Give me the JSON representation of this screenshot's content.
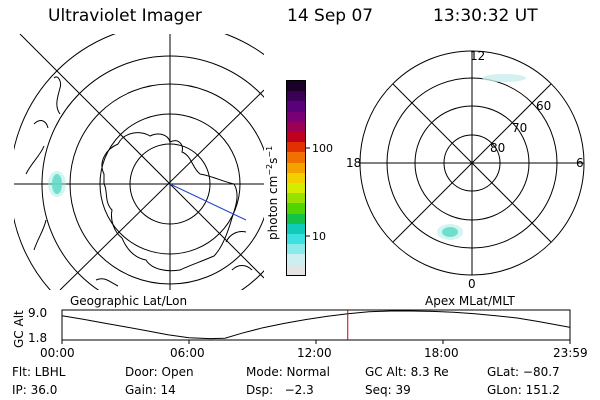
{
  "header": {
    "instrument": "Ultraviolet Imager",
    "date": "14 Sep 07",
    "time": "13:30:32 UT"
  },
  "colorbar": {
    "unit_label": "photon cm",
    "unit_sup1": "−2",
    "unit_mid": "s",
    "unit_sup2": "−1",
    "ticks": [
      "100",
      "10"
    ],
    "colors": [
      "#1a0026",
      "#3a0055",
      "#5a007a",
      "#780077",
      "#9a0055",
      "#c00020",
      "#e23000",
      "#f07000",
      "#f5a200",
      "#f2d000",
      "#d4ec00",
      "#98e000",
      "#52d400",
      "#14c24a",
      "#10cbb8",
      "#3be0df",
      "#8aeaea",
      "#cdeff0",
      "#e4e4e4"
    ]
  },
  "maps": {
    "left_label": "Geographic Lat/Lon",
    "right_label": "Apex MLat/MLT",
    "right_mlt_ticks": {
      "top": "12",
      "bottom": "0",
      "left": "18",
      "right": "6"
    },
    "right_lat_ticks": [
      "60",
      "70",
      "80"
    ]
  },
  "chart_data": {
    "type": "line",
    "title": "",
    "ylabel": "GC Alt",
    "ytick_labels": [
      "9.0",
      "1.8"
    ],
    "ylim": [
      1.8,
      9.0
    ],
    "xtick_labels": [
      "00:00",
      "06:00",
      "12:00",
      "18:00",
      "23:59"
    ],
    "xlim_hours": [
      0,
      24
    ],
    "series": [
      {
        "x": [
          0,
          1,
          2,
          3,
          4,
          5,
          6,
          7,
          7.7,
          8.5,
          9.5,
          10.5,
          11.5,
          12.5,
          13.5,
          14.5,
          15.5,
          16.5,
          17.5,
          18.5,
          19.5,
          20.5,
          21.5,
          22.5,
          23.98
        ],
        "y": [
          7.8,
          6.9,
          5.9,
          4.9,
          3.9,
          2.9,
          2.1,
          1.9,
          2.0,
          3.3,
          4.7,
          5.8,
          6.8,
          7.6,
          8.3,
          8.8,
          9.0,
          9.0,
          8.9,
          8.7,
          8.3,
          7.8,
          7.2,
          6.3,
          4.8
        ]
      }
    ],
    "current_time_hours": 13.5,
    "current_time_color": "#cc0000"
  },
  "info": {
    "col1": [
      "Flt: LBHL",
      "IP: 36.0"
    ],
    "col2": [
      "Door: Open",
      "Gain: 14"
    ],
    "col3": [
      "Mode: Normal",
      "Dsp:   −2.3"
    ],
    "col4": [
      "GC Alt: 8.3 Re",
      "Seq: 39"
    ],
    "col5": [
      "GLat: −80.7",
      "GLon: 151.2"
    ]
  }
}
